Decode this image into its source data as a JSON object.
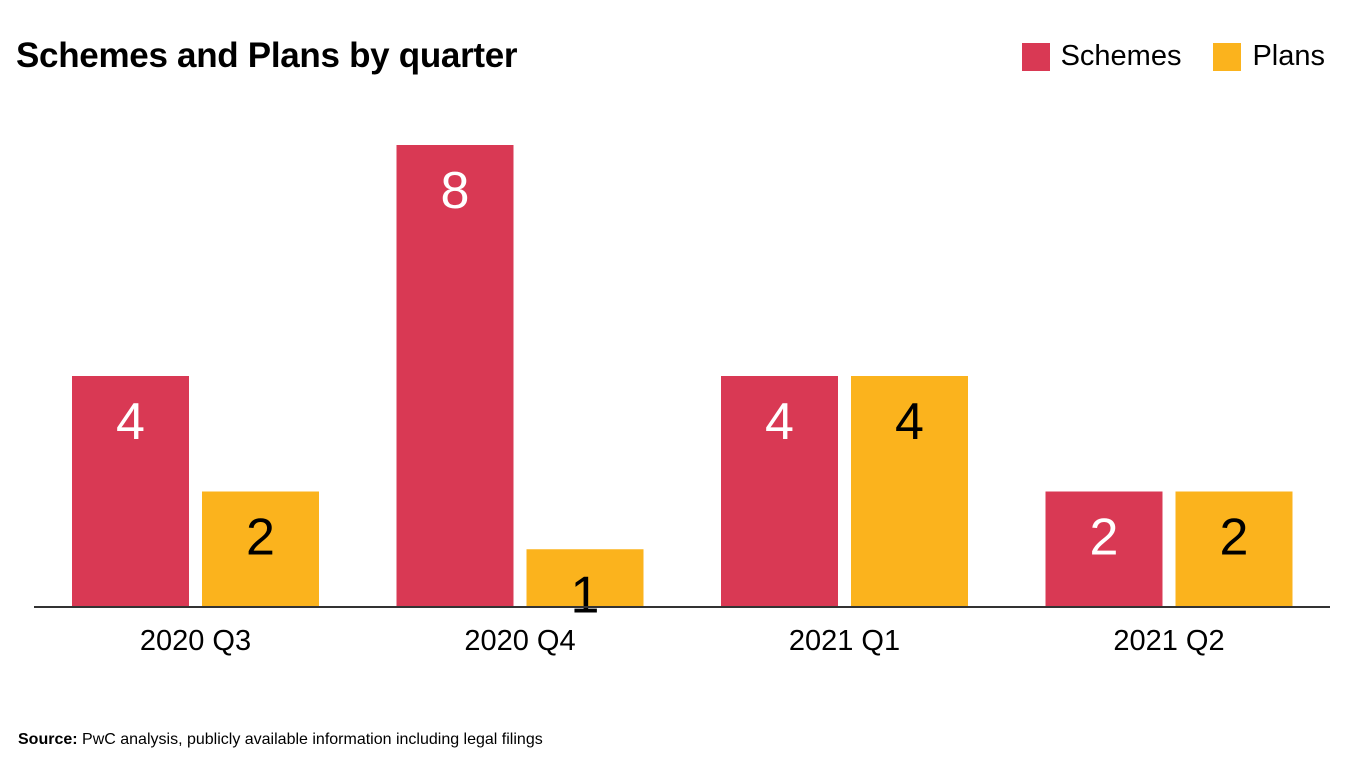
{
  "chart_data": {
    "type": "bar",
    "title": "Schemes and Plans by quarter",
    "categories": [
      "2020 Q3",
      "2020 Q4",
      "2021 Q1",
      "2021 Q2"
    ],
    "series": [
      {
        "name": "Schemes",
        "values": [
          4,
          8,
          4,
          2
        ],
        "color": "#D93954",
        "label_color": "#ffffff"
      },
      {
        "name": "Plans",
        "values": [
          2,
          1,
          4,
          2
        ],
        "color": "#FBB31D",
        "label_color": "#000000"
      }
    ],
    "data_labels": true,
    "ylim": [
      0,
      8
    ],
    "grid": false,
    "legend_position": "top-right",
    "xlabel": "",
    "ylabel": ""
  },
  "source": {
    "label": "Source:",
    "text": "PwC analysis, publicly available information including legal filings"
  }
}
